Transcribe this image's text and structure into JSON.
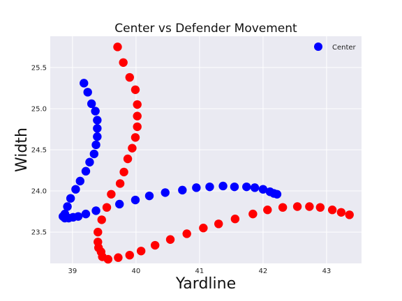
{
  "chart_data": {
    "type": "scatter",
    "title": "Center vs Defender Movement",
    "xlabel": "Yardline",
    "ylabel": "Width",
    "xlim": [
      38.65,
      43.55
    ],
    "ylim": [
      23.12,
      25.88
    ],
    "xticks": [
      39,
      40,
      41,
      42,
      43
    ],
    "yticks": [
      23.5,
      24.0,
      24.5,
      25.0,
      25.5
    ],
    "grid": true,
    "legend": {
      "placement": "top-right"
    },
    "series": [
      {
        "name": "Center",
        "color": "#0000ff",
        "points": [
          [
            39.18,
            25.31
          ],
          [
            39.24,
            25.2
          ],
          [
            39.3,
            25.06
          ],
          [
            39.36,
            24.97
          ],
          [
            39.39,
            24.86
          ],
          [
            39.39,
            24.76
          ],
          [
            39.39,
            24.66
          ],
          [
            39.37,
            24.56
          ],
          [
            39.34,
            24.45
          ],
          [
            39.27,
            24.35
          ],
          [
            39.21,
            24.24
          ],
          [
            39.12,
            24.12
          ],
          [
            39.05,
            24.02
          ],
          [
            38.97,
            23.91
          ],
          [
            38.92,
            23.81
          ],
          [
            38.88,
            23.72
          ],
          [
            38.85,
            23.69
          ],
          [
            38.88,
            23.67
          ],
          [
            38.94,
            23.67
          ],
          [
            39.01,
            23.68
          ],
          [
            39.09,
            23.69
          ],
          [
            39.21,
            23.72
          ],
          [
            39.37,
            23.76
          ],
          [
            39.74,
            23.84
          ],
          [
            39.99,
            23.89
          ],
          [
            40.21,
            23.94
          ],
          [
            40.46,
            23.98
          ],
          [
            40.73,
            24.01
          ],
          [
            40.95,
            24.04
          ],
          [
            41.16,
            24.05
          ],
          [
            41.37,
            24.06
          ],
          [
            41.55,
            24.05
          ],
          [
            41.74,
            24.05
          ],
          [
            41.87,
            24.04
          ],
          [
            42.0,
            24.02
          ],
          [
            42.11,
            23.99
          ],
          [
            42.17,
            23.97
          ],
          [
            42.22,
            23.96
          ]
        ]
      },
      {
        "name": "",
        "color": "#ff0000",
        "points": [
          [
            39.71,
            25.75
          ],
          [
            39.8,
            25.56
          ],
          [
            39.9,
            25.38
          ],
          [
            39.99,
            25.23
          ],
          [
            40.02,
            25.05
          ],
          [
            40.02,
            24.91
          ],
          [
            40.02,
            24.78
          ],
          [
            39.99,
            24.65
          ],
          [
            39.94,
            24.52
          ],
          [
            39.87,
            24.39
          ],
          [
            39.81,
            24.23
          ],
          [
            39.75,
            24.09
          ],
          [
            39.61,
            23.96
          ],
          [
            39.54,
            23.8
          ],
          [
            39.46,
            23.65
          ],
          [
            39.4,
            23.5
          ],
          [
            39.4,
            23.38
          ],
          [
            39.41,
            23.31
          ],
          [
            39.45,
            23.26
          ],
          [
            39.47,
            23.2
          ],
          [
            39.56,
            23.17
          ],
          [
            39.72,
            23.19
          ],
          [
            39.9,
            23.22
          ],
          [
            40.08,
            23.27
          ],
          [
            40.3,
            23.34
          ],
          [
            40.54,
            23.41
          ],
          [
            40.8,
            23.48
          ],
          [
            41.06,
            23.55
          ],
          [
            41.3,
            23.6
          ],
          [
            41.56,
            23.66
          ],
          [
            41.84,
            23.72
          ],
          [
            42.07,
            23.77
          ],
          [
            42.31,
            23.8
          ],
          [
            42.54,
            23.81
          ],
          [
            42.73,
            23.81
          ],
          [
            42.9,
            23.8
          ],
          [
            43.09,
            23.77
          ],
          [
            43.23,
            23.74
          ],
          [
            43.36,
            23.71
          ]
        ]
      }
    ]
  }
}
